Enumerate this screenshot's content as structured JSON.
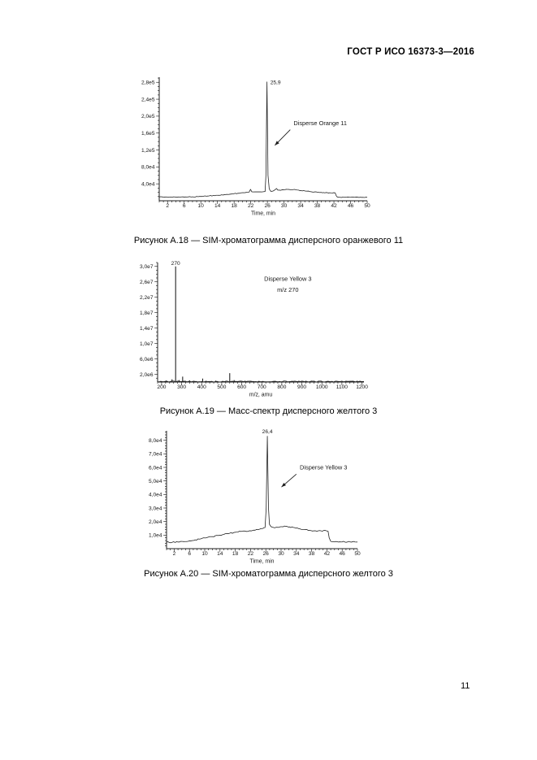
{
  "page": {
    "header_title": "ГОСТ Р ИСО 16373-3—2016",
    "page_number": "11"
  },
  "figures": [
    {
      "caption": "Рисунок А.18 — SIM-хроматограмма дисперсного оранжевого 11"
    },
    {
      "caption": "Рисунок А.19 — Масс-спектр дисперсного желтого 3"
    },
    {
      "caption": "Рисунок А.20 — SIM-хроматограмма дисперсного желтого 3"
    }
  ],
  "chart_data": [
    {
      "id": "fig-a18",
      "type": "line",
      "title": "SIM chromatogram of Disperse Orange 11",
      "xlabel": "Time, min",
      "ylabel": "",
      "xlim": [
        0,
        50
      ],
      "ylim": [
        0,
        292000
      ],
      "grid": false,
      "x_ticks": {
        "values": [
          2,
          6,
          10,
          14,
          18,
          22,
          26,
          30,
          34,
          38,
          42,
          46,
          50
        ],
        "labels": [
          "2",
          "6",
          "10",
          "14",
          "18",
          "22",
          "26",
          "30",
          "34",
          "38",
          "42",
          "46",
          "50"
        ],
        "minor_step": 1
      },
      "y_ticks": {
        "values": [
          40000,
          80000,
          120000,
          160000,
          200000,
          240000,
          280000
        ],
        "labels": [
          "4,0e4",
          "8,0e4",
          "1,2e5",
          "1,6e5",
          "2,0e5",
          "2,4e5",
          "2,8e5"
        ],
        "minor_step": 10000
      },
      "peak_label": {
        "text": "25,9",
        "x": 26.7,
        "y": 276000,
        "anchor": "start"
      },
      "annotation": {
        "lines": [
          "Disperse Orange 11"
        ],
        "x": 32.3,
        "y": 179000,
        "anchor": "start",
        "arrow": {
          "x1": 31.5,
          "y1": 168000,
          "x2": 27.8,
          "y2": 131000
        }
      },
      "noise": 800,
      "series": [
        [
          0,
          9000
        ],
        [
          1,
          8600
        ],
        [
          2.5,
          8400
        ],
        [
          4,
          8500
        ],
        [
          6,
          8800
        ],
        [
          8,
          9400
        ],
        [
          10,
          10200
        ],
        [
          12,
          11500
        ],
        [
          14,
          13000
        ],
        [
          16,
          14800
        ],
        [
          18,
          16800
        ],
        [
          19.5,
          18200
        ],
        [
          20.8,
          19600
        ],
        [
          21.6,
          20400
        ],
        [
          21.95,
          27000
        ],
        [
          22.25,
          21200
        ],
        [
          23,
          21000
        ],
        [
          24,
          21100
        ],
        [
          25,
          21300
        ],
        [
          25.45,
          22000
        ],
        [
          25.65,
          60000
        ],
        [
          25.9,
          281000
        ],
        [
          26.15,
          60000
        ],
        [
          26.45,
          28000
        ],
        [
          26.8,
          22500
        ],
        [
          27.3,
          22800
        ],
        [
          28.2,
          29000
        ],
        [
          28.5,
          25200
        ],
        [
          29.2,
          24800
        ],
        [
          30.2,
          26200
        ],
        [
          31.2,
          26800
        ],
        [
          32.2,
          26400
        ],
        [
          33.5,
          25200
        ],
        [
          35,
          23200
        ],
        [
          36.5,
          21400
        ],
        [
          38,
          20200
        ],
        [
          39.5,
          19400
        ],
        [
          41,
          19000
        ],
        [
          42.3,
          18700
        ],
        [
          42.55,
          12000
        ],
        [
          42.8,
          9000
        ],
        [
          43.5,
          8200
        ],
        [
          45,
          8100
        ],
        [
          47,
          8100
        ],
        [
          49,
          8200
        ],
        [
          50,
          8200
        ]
      ]
    },
    {
      "id": "fig-a19",
      "type": "sticks",
      "title": "Mass spectrum of Disperse Yellow 3",
      "xlabel": "m/z, amu",
      "ylabel": "",
      "xlim": [
        180,
        1210
      ],
      "ylim": [
        0,
        31000000
      ],
      "grid": false,
      "x_ticks": {
        "values": [
          200,
          300,
          400,
          500,
          600,
          700,
          800,
          900,
          1000,
          1100,
          1200
        ],
        "labels": [
          "200",
          "300",
          "400",
          "500",
          "600",
          "700",
          "800",
          "900",
          "1000",
          "1100",
          "1200"
        ],
        "minor_step": 20
      },
      "y_ticks": {
        "values": [
          2000000,
          6000000,
          10000000,
          14000000,
          18000000,
          22000000,
          26000000,
          30000000
        ],
        "labels": [
          "2,0e6",
          "6,0e6",
          "1,0e7",
          "1,4e7",
          "1,8e7",
          "2,2e7",
          "2,6e7",
          "3,0e7"
        ],
        "minor_step": 1000000
      },
      "peak_label": {
        "text": "270",
        "x": 270,
        "y": 30400000,
        "anchor": "middle"
      },
      "annotation": {
        "lines": [
          "Disperse Yellow 3",
          "m/z 270"
        ],
        "x": 830,
        "y": 26300000,
        "anchor": "middle"
      },
      "baseline_value": 150000,
      "baseline_noise": 120000,
      "sticks": [
        [
          222,
          400000
        ],
        [
          252,
          700000
        ],
        [
          270,
          30000000
        ],
        [
          288,
          500000
        ],
        [
          305,
          1400000
        ],
        [
          340,
          400000
        ],
        [
          405,
          900000
        ],
        [
          470,
          350000
        ],
        [
          540,
          2300000
        ],
        [
          562,
          500000
        ]
      ]
    },
    {
      "id": "fig-a20",
      "type": "line",
      "title": "SIM chromatogram of Disperse Yellow 3",
      "xlabel": "Time, min",
      "ylabel": "",
      "xlim": [
        0,
        50
      ],
      "ylim": [
        0,
        87000
      ],
      "grid": false,
      "x_ticks": {
        "values": [
          2,
          6,
          10,
          14,
          18,
          22,
          26,
          30,
          34,
          38,
          42,
          46,
          50
        ],
        "labels": [
          "2",
          "6",
          "10",
          "14",
          "18",
          "22",
          "26",
          "30",
          "34",
          "38",
          "42",
          "46",
          "50"
        ],
        "minor_step": 1
      },
      "y_ticks": {
        "values": [
          10000,
          20000,
          30000,
          40000,
          50000,
          60000,
          70000,
          80000
        ],
        "labels": [
          "1,0e4",
          "2,0e4",
          "3,0e4",
          "4,0e4",
          "5,0e4",
          "6,0e4",
          "7,0e4",
          "8,0e4"
        ],
        "minor_step": 2000
      },
      "peak_label": {
        "text": "26,4",
        "x": 26.4,
        "y": 85200,
        "anchor": "middle"
      },
      "annotation": {
        "lines": [
          "Disperse Yellow 3"
        ],
        "x": 34.9,
        "y": 58500,
        "anchor": "start",
        "arrow": {
          "x1": 34.0,
          "y1": 55000,
          "x2": 30.1,
          "y2": 45500
        }
      },
      "noise": 380,
      "series": [
        [
          0,
          4800
        ],
        [
          1.5,
          4700
        ],
        [
          3,
          4900
        ],
        [
          4.5,
          5200
        ],
        [
          6,
          5800
        ],
        [
          7.5,
          6500
        ],
        [
          9,
          7300
        ],
        [
          10.5,
          8100
        ],
        [
          12,
          8900
        ],
        [
          13.5,
          9700
        ],
        [
          15,
          10500
        ],
        [
          16.5,
          11300
        ],
        [
          18,
          12100
        ],
        [
          19.5,
          12700
        ],
        [
          20.5,
          13000
        ],
        [
          21.3,
          12800
        ],
        [
          22.2,
          13100
        ],
        [
          23.2,
          13600
        ],
        [
          24.2,
          14200
        ],
        [
          25.2,
          14900
        ],
        [
          25.8,
          15600
        ],
        [
          26.1,
          30000
        ],
        [
          26.4,
          83000
        ],
        [
          26.7,
          30000
        ],
        [
          26.95,
          18000
        ],
        [
          27.5,
          16000
        ],
        [
          28.3,
          15400
        ],
        [
          29.2,
          15700
        ],
        [
          30.2,
          16200
        ],
        [
          31.2,
          16400
        ],
        [
          32.2,
          16100
        ],
        [
          33.2,
          15700
        ],
        [
          34.5,
          14900
        ],
        [
          36,
          14100
        ],
        [
          37.5,
          13500
        ],
        [
          39,
          13200
        ],
        [
          40.5,
          13100
        ],
        [
          41.8,
          13200
        ],
        [
          42.3,
          12900
        ],
        [
          42.6,
          8000
        ],
        [
          43,
          5400
        ],
        [
          44,
          5000
        ],
        [
          46,
          5000
        ],
        [
          48,
          5100
        ],
        [
          50,
          4900
        ]
      ]
    }
  ]
}
